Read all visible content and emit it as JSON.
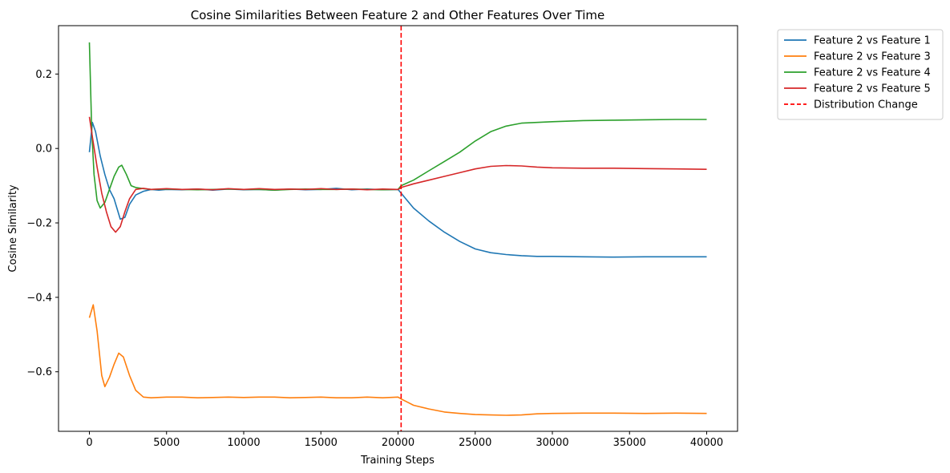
{
  "chart_data": {
    "type": "line",
    "title": "Cosine Similarities Between Feature 2 and Other Features Over Time",
    "xlabel": "Training Steps",
    "ylabel": "Cosine Similarity",
    "xlim": [
      -2000,
      42000
    ],
    "ylim": [
      -0.76,
      0.33
    ],
    "xticks": [
      0,
      5000,
      10000,
      15000,
      20000,
      25000,
      30000,
      35000,
      40000
    ],
    "xtick_labels": [
      "0",
      "5000",
      "10000",
      "15000",
      "20000",
      "25000",
      "30000",
      "35000",
      "40000"
    ],
    "yticks": [
      -0.6,
      -0.4,
      -0.2,
      0.0,
      0.2
    ],
    "ytick_labels": [
      "−0.6",
      "−0.4",
      "−0.2",
      "0.0",
      "0.2"
    ],
    "grid": false,
    "legend_placement": "outside-top-right",
    "series": [
      {
        "name": "Feature 2 vs Feature 1",
        "color": "#1f77b4",
        "points": [
          [
            0,
            -0.01
          ],
          [
            200,
            0.07
          ],
          [
            400,
            0.045
          ],
          [
            700,
            -0.02
          ],
          [
            1000,
            -0.07
          ],
          [
            1300,
            -0.11
          ],
          [
            1600,
            -0.135
          ],
          [
            2000,
            -0.19
          ],
          [
            2300,
            -0.185
          ],
          [
            2600,
            -0.15
          ],
          [
            3000,
            -0.125
          ],
          [
            3500,
            -0.115
          ],
          [
            4000,
            -0.11
          ],
          [
            4500,
            -0.112
          ],
          [
            5000,
            -0.11
          ],
          [
            6000,
            -0.111
          ],
          [
            7000,
            -0.109
          ],
          [
            8000,
            -0.112
          ],
          [
            9000,
            -0.109
          ],
          [
            10000,
            -0.111
          ],
          [
            11000,
            -0.11
          ],
          [
            12000,
            -0.112
          ],
          [
            13000,
            -0.109
          ],
          [
            14000,
            -0.111
          ],
          [
            15000,
            -0.11
          ],
          [
            16000,
            -0.107
          ],
          [
            17000,
            -0.111
          ],
          [
            18000,
            -0.109
          ],
          [
            19000,
            -0.111
          ],
          [
            20000,
            -0.11
          ],
          [
            20200,
            -0.12
          ],
          [
            21000,
            -0.16
          ],
          [
            22000,
            -0.195
          ],
          [
            23000,
            -0.225
          ],
          [
            24000,
            -0.25
          ],
          [
            25000,
            -0.27
          ],
          [
            26000,
            -0.28
          ],
          [
            27000,
            -0.285
          ],
          [
            28000,
            -0.288
          ],
          [
            29000,
            -0.29
          ],
          [
            30000,
            -0.29
          ],
          [
            32000,
            -0.291
          ],
          [
            34000,
            -0.292
          ],
          [
            36000,
            -0.291
          ],
          [
            38000,
            -0.291
          ],
          [
            40000,
            -0.291
          ]
        ]
      },
      {
        "name": "Feature 2 vs Feature 3",
        "color": "#ff7f0e",
        "points": [
          [
            0,
            -0.455
          ],
          [
            250,
            -0.42
          ],
          [
            500,
            -0.49
          ],
          [
            800,
            -0.61
          ],
          [
            1000,
            -0.64
          ],
          [
            1300,
            -0.615
          ],
          [
            1600,
            -0.58
          ],
          [
            1900,
            -0.55
          ],
          [
            2200,
            -0.56
          ],
          [
            2600,
            -0.61
          ],
          [
            3000,
            -0.65
          ],
          [
            3500,
            -0.668
          ],
          [
            4000,
            -0.67
          ],
          [
            5000,
            -0.668
          ],
          [
            6000,
            -0.668
          ],
          [
            7000,
            -0.67
          ],
          [
            8000,
            -0.669
          ],
          [
            9000,
            -0.668
          ],
          [
            10000,
            -0.669
          ],
          [
            11000,
            -0.668
          ],
          [
            12000,
            -0.668
          ],
          [
            13000,
            -0.67
          ],
          [
            14000,
            -0.669
          ],
          [
            15000,
            -0.668
          ],
          [
            16000,
            -0.67
          ],
          [
            17000,
            -0.67
          ],
          [
            18000,
            -0.668
          ],
          [
            19000,
            -0.67
          ],
          [
            20000,
            -0.668
          ],
          [
            20200,
            -0.673
          ],
          [
            21000,
            -0.69
          ],
          [
            22000,
            -0.7
          ],
          [
            23000,
            -0.708
          ],
          [
            24000,
            -0.712
          ],
          [
            25000,
            -0.715
          ],
          [
            26000,
            -0.716
          ],
          [
            27000,
            -0.717
          ],
          [
            28000,
            -0.716
          ],
          [
            29000,
            -0.713
          ],
          [
            30000,
            -0.712
          ],
          [
            32000,
            -0.711
          ],
          [
            34000,
            -0.711
          ],
          [
            36000,
            -0.712
          ],
          [
            38000,
            -0.711
          ],
          [
            40000,
            -0.712
          ]
        ]
      },
      {
        "name": "Feature 2 vs Feature 4",
        "color": "#2ca02c",
        "points": [
          [
            0,
            0.285
          ],
          [
            150,
            0.05
          ],
          [
            300,
            -0.07
          ],
          [
            500,
            -0.14
          ],
          [
            700,
            -0.16
          ],
          [
            1000,
            -0.145
          ],
          [
            1300,
            -0.11
          ],
          [
            1600,
            -0.075
          ],
          [
            1900,
            -0.05
          ],
          [
            2100,
            -0.045
          ],
          [
            2400,
            -0.07
          ],
          [
            2700,
            -0.1
          ],
          [
            3000,
            -0.105
          ],
          [
            3500,
            -0.108
          ],
          [
            4000,
            -0.11
          ],
          [
            5000,
            -0.109
          ],
          [
            6000,
            -0.11
          ],
          [
            7000,
            -0.111
          ],
          [
            8000,
            -0.11
          ],
          [
            9000,
            -0.109
          ],
          [
            10000,
            -0.11
          ],
          [
            11000,
            -0.11
          ],
          [
            12000,
            -0.112
          ],
          [
            13000,
            -0.11
          ],
          [
            14000,
            -0.109
          ],
          [
            15000,
            -0.11
          ],
          [
            16000,
            -0.11
          ],
          [
            17000,
            -0.109
          ],
          [
            18000,
            -0.11
          ],
          [
            19000,
            -0.111
          ],
          [
            20000,
            -0.11
          ],
          [
            20200,
            -0.1
          ],
          [
            21000,
            -0.085
          ],
          [
            22000,
            -0.06
          ],
          [
            23000,
            -0.035
          ],
          [
            24000,
            -0.01
          ],
          [
            25000,
            0.02
          ],
          [
            26000,
            0.045
          ],
          [
            27000,
            0.06
          ],
          [
            28000,
            0.068
          ],
          [
            29000,
            0.07
          ],
          [
            30000,
            0.072
          ],
          [
            32000,
            0.075
          ],
          [
            34000,
            0.076
          ],
          [
            36000,
            0.077
          ],
          [
            38000,
            0.078
          ],
          [
            40000,
            0.078
          ]
        ]
      },
      {
        "name": "Feature 2 vs Feature 5",
        "color": "#d62728",
        "points": [
          [
            0,
            0.085
          ],
          [
            200,
            0.03
          ],
          [
            500,
            -0.05
          ],
          [
            800,
            -0.12
          ],
          [
            1100,
            -0.17
          ],
          [
            1400,
            -0.21
          ],
          [
            1700,
            -0.225
          ],
          [
            2000,
            -0.21
          ],
          [
            2300,
            -0.17
          ],
          [
            2600,
            -0.135
          ],
          [
            3000,
            -0.11
          ],
          [
            3500,
            -0.107
          ],
          [
            4000,
            -0.11
          ],
          [
            5000,
            -0.108
          ],
          [
            6000,
            -0.11
          ],
          [
            7000,
            -0.109
          ],
          [
            8000,
            -0.111
          ],
          [
            9000,
            -0.108
          ],
          [
            10000,
            -0.11
          ],
          [
            11000,
            -0.108
          ],
          [
            12000,
            -0.11
          ],
          [
            13000,
            -0.109
          ],
          [
            14000,
            -0.11
          ],
          [
            15000,
            -0.108
          ],
          [
            16000,
            -0.11
          ],
          [
            17000,
            -0.109
          ],
          [
            18000,
            -0.111
          ],
          [
            19000,
            -0.109
          ],
          [
            20000,
            -0.11
          ],
          [
            20200,
            -0.105
          ],
          [
            21000,
            -0.095
          ],
          [
            22000,
            -0.085
          ],
          [
            23000,
            -0.075
          ],
          [
            24000,
            -0.065
          ],
          [
            25000,
            -0.055
          ],
          [
            26000,
            -0.048
          ],
          [
            27000,
            -0.046
          ],
          [
            28000,
            -0.047
          ],
          [
            29000,
            -0.05
          ],
          [
            30000,
            -0.052
          ],
          [
            32000,
            -0.053
          ],
          [
            34000,
            -0.053
          ],
          [
            36000,
            -0.054
          ],
          [
            38000,
            -0.055
          ],
          [
            40000,
            -0.056
          ]
        ]
      }
    ],
    "vlines": [
      {
        "name": "Distribution Change",
        "x": 20200,
        "color": "#ff0000",
        "style": "dashed"
      }
    ]
  }
}
